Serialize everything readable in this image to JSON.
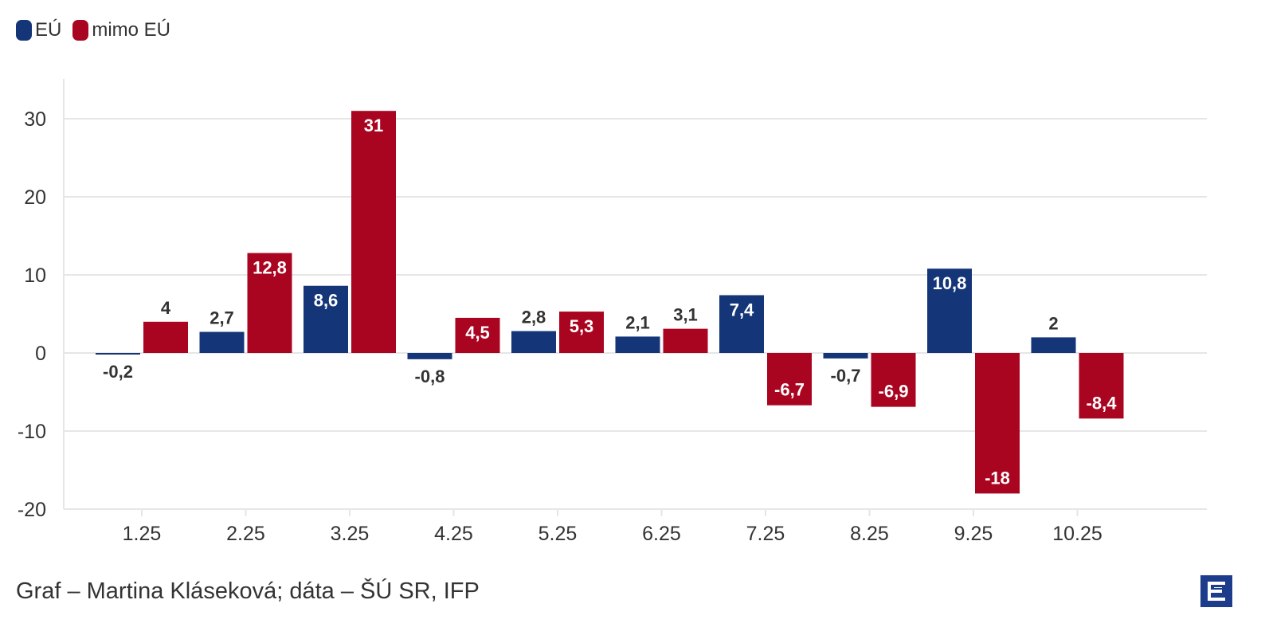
{
  "legend": {
    "items": [
      {
        "label": "EÚ",
        "color": "#143578"
      },
      {
        "label": "mimo EÚ",
        "color": "#aa0520"
      }
    ]
  },
  "chart_data": {
    "type": "bar",
    "categories": [
      "1.25",
      "2.25",
      "3.25",
      "4.25",
      "5.25",
      "6.25",
      "7.25",
      "8.25",
      "9.25",
      "10.25"
    ],
    "series": [
      {
        "name": "EÚ",
        "color": "#143578",
        "values": [
          -0.2,
          2.7,
          8.6,
          -0.8,
          2.8,
          2.1,
          7.4,
          -0.7,
          10.8,
          2
        ],
        "labels": [
          "-0,2",
          "2,7",
          "8,6",
          "-0,8",
          "2,8",
          "2,1",
          "7,4",
          "-0,7",
          "10,8",
          "2"
        ]
      },
      {
        "name": "mimo EÚ",
        "color": "#aa0520",
        "values": [
          4,
          12.8,
          31,
          4.5,
          5.3,
          3.1,
          -6.7,
          -6.9,
          -18,
          -8.4
        ],
        "labels": [
          "4",
          "12,8",
          "31",
          "4,5",
          "5,3",
          "3,1",
          "-6,7",
          "-6,9",
          "-18",
          "-8,4"
        ]
      }
    ],
    "yticks": [
      "-20",
      "-10",
      "0",
      "10",
      "20",
      "30"
    ],
    "ylim": [
      -20,
      35
    ],
    "grid": true,
    "legend_position": "top-left",
    "title": "",
    "xlabel": "",
    "ylabel": ""
  },
  "footer": {
    "credit": "Graf – Martina Kláseková; dáta – ŠÚ SR, IFP",
    "logo_icon": "publisher-logo-icon"
  }
}
